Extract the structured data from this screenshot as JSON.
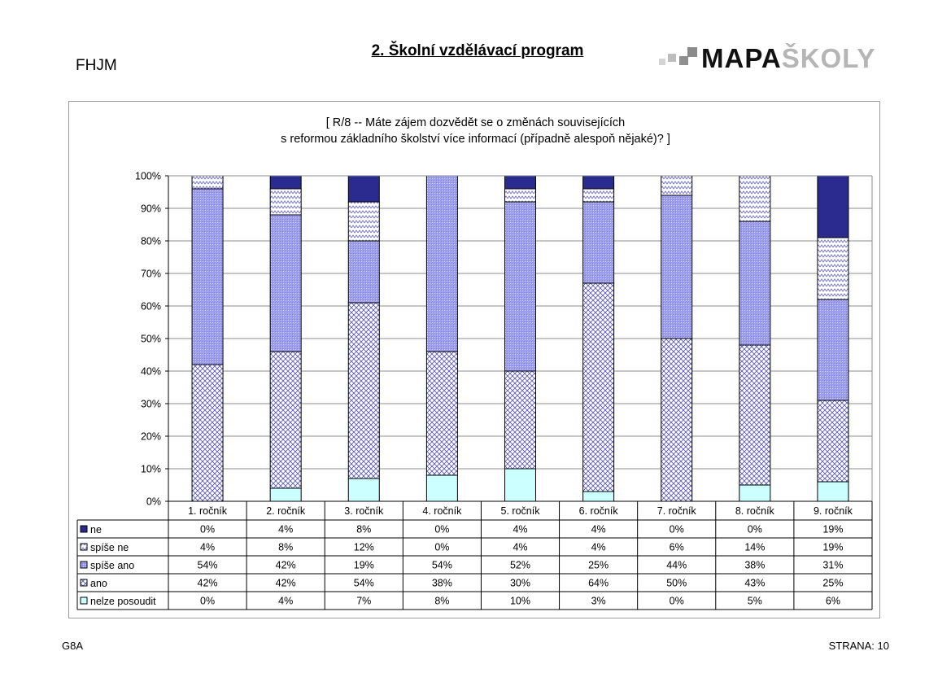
{
  "header": {
    "school_code": "FHJM",
    "section_title": "2. Školní vzdělávací program",
    "logo_text_dark": "MAPA",
    "logo_text_light": "ŠKOLY"
  },
  "footer": {
    "left": "G8A",
    "right": "STRANA: 10"
  },
  "chart_data": {
    "type": "bar",
    "stacked": true,
    "percent": true,
    "title_lines": [
      "[ R/8 -- Máte zájem dozvědět se o změnách souvisejících",
      "s reformou základního školství více informací (případně alespoň nějaké)? ]"
    ],
    "categories": [
      "1. ročník",
      "2. ročník",
      "3. ročník",
      "4. ročník",
      "5. ročník",
      "6. ročník",
      "7. ročník",
      "8. ročník",
      "9. ročník"
    ],
    "ylim": [
      0,
      100
    ],
    "yticks": [
      "0%",
      "10%",
      "20%",
      "30%",
      "40%",
      "50%",
      "60%",
      "70%",
      "80%",
      "90%",
      "100%"
    ],
    "grid": true,
    "legend_placement": "data-table-left",
    "series": [
      {
        "name": "ne",
        "color": "#2b2b8f",
        "pattern": "solid",
        "values": [
          0,
          4,
          8,
          0,
          4,
          4,
          0,
          0,
          19
        ]
      },
      {
        "name": "spíše ne",
        "color": "#9999ee",
        "pattern": "zigzag",
        "values": [
          4,
          8,
          12,
          0,
          4,
          4,
          6,
          14,
          19
        ]
      },
      {
        "name": "spíše ano",
        "color": "#9999ee",
        "pattern": "dots",
        "values": [
          54,
          42,
          19,
          54,
          52,
          25,
          44,
          38,
          31
        ]
      },
      {
        "name": "ano",
        "color": "#5555aa",
        "pattern": "weave",
        "values": [
          42,
          42,
          54,
          38,
          30,
          64,
          50,
          43,
          25
        ]
      },
      {
        "name": "nelze posoudit",
        "color": "#ccffff",
        "pattern": "solid",
        "values": [
          0,
          4,
          7,
          8,
          10,
          3,
          0,
          5,
          6
        ]
      }
    ],
    "table_values": [
      [
        "0%",
        "4%",
        "8%",
        "0%",
        "4%",
        "4%",
        "0%",
        "0%",
        "19%"
      ],
      [
        "4%",
        "8%",
        "12%",
        "0%",
        "4%",
        "4%",
        "6%",
        "14%",
        "19%"
      ],
      [
        "54%",
        "42%",
        "19%",
        "54%",
        "52%",
        "25%",
        "44%",
        "38%",
        "31%"
      ],
      [
        "42%",
        "42%",
        "54%",
        "38%",
        "30%",
        "64%",
        "50%",
        "43%",
        "25%"
      ],
      [
        "0%",
        "4%",
        "7%",
        "8%",
        "10%",
        "3%",
        "0%",
        "5%",
        "6%"
      ]
    ]
  }
}
